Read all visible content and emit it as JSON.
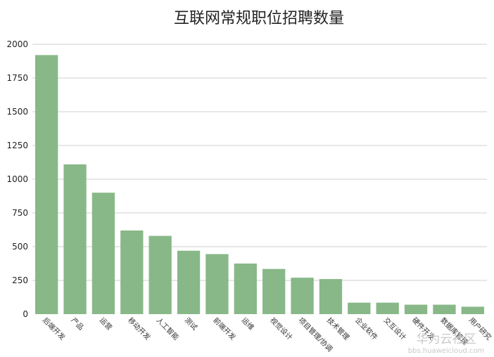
{
  "chart_data": {
    "type": "bar",
    "title": "互联网常规职位招聘数量",
    "xlabel": "",
    "ylabel": "",
    "ylim": [
      0,
      2000
    ],
    "yticks": [
      0,
      250,
      500,
      750,
      1000,
      1250,
      1500,
      1750,
      2000
    ],
    "grid": true,
    "bar_color": "#88b888",
    "categories": [
      "后端开发",
      "产品",
      "运营",
      "移动开发",
      "人工智能",
      "测试",
      "前端开发",
      "运维",
      "视觉设计",
      "项目管理/协调",
      "技术管理",
      "企业软件",
      "交互设计",
      "硬件开发",
      "数据库管理",
      "用户研究"
    ],
    "values": [
      1920,
      1110,
      900,
      620,
      580,
      470,
      445,
      375,
      335,
      270,
      260,
      85,
      85,
      70,
      70,
      55
    ]
  },
  "watermark": {
    "line1": "华为云社区",
    "line2": "bbs.huaweicloud.com"
  }
}
